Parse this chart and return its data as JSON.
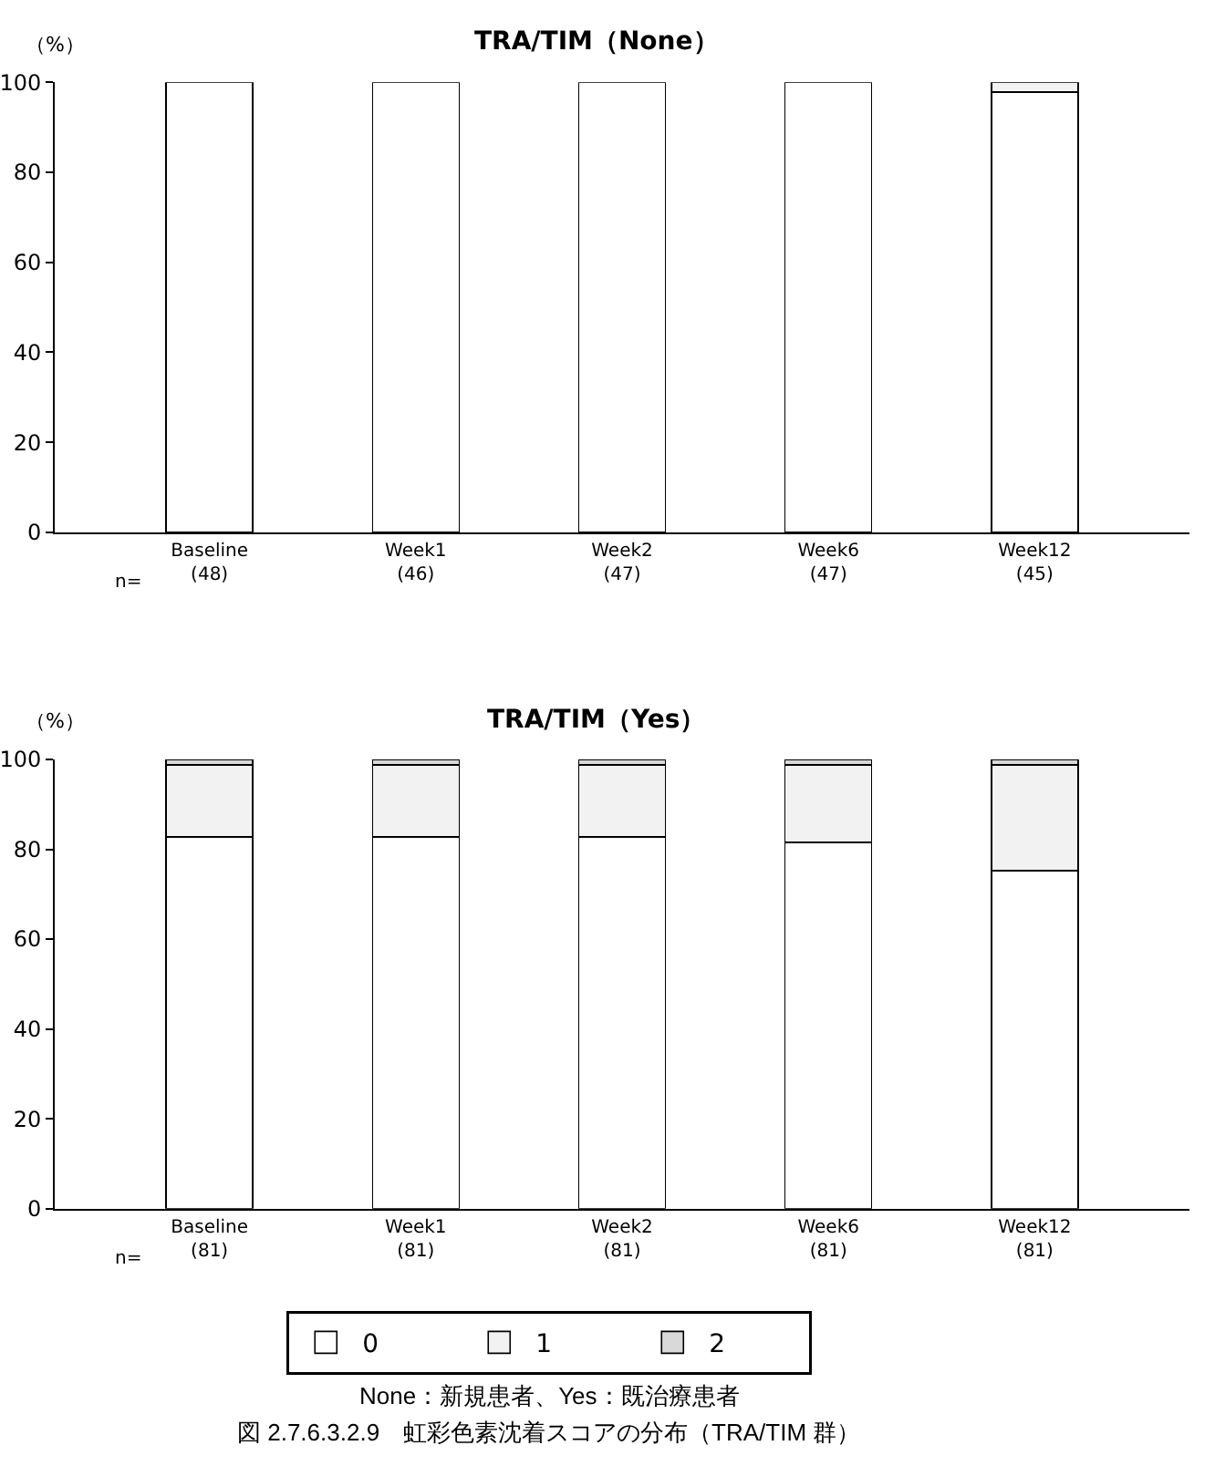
{
  "chart_data": [
    {
      "type": "bar",
      "stacked": true,
      "title": "TRA/TIM（None）",
      "ylabel": "（%）",
      "categories": [
        "Baseline\n(48)",
        "Week1\n(46)",
        "Week2\n(47)",
        "Week6\n(47)",
        "Week12\n(45)"
      ],
      "series": [
        {
          "color": "#ffffff",
          "values": [
            100,
            100,
            100,
            100,
            97.8
          ]
        },
        {
          "color": "#f2f2f2",
          "values": [
            0,
            0,
            0,
            0,
            2.2
          ]
        },
        {
          "color": "#d9d9d9",
          "values": [
            0,
            0,
            0,
            0,
            0
          ]
        }
      ],
      "ylim": [
        0,
        100
      ],
      "yticks": [
        0,
        20,
        40,
        60,
        80,
        100
      ],
      "annotations": [
        "n="
      ]
    },
    {
      "type": "bar",
      "stacked": true,
      "title": "TRA/TIM（Yes）",
      "ylabel": "（%）",
      "categories": [
        "Baseline\n(81)",
        "Week1\n(81)",
        "Week2\n(81)",
        "Week6\n(81)",
        "Week12\n(81)"
      ],
      "series": [
        {
          "name": "0",
          "color": "#ffffff",
          "values": [
            82.7,
            82.7,
            82.7,
            81.5,
            75.3
          ]
        },
        {
          "name": "1",
          "color": "#f2f2f2",
          "values": [
            16.1,
            16.1,
            16.1,
            17.3,
            23.5
          ]
        },
        {
          "name": "2",
          "color": "#d9d9d9",
          "values": [
            1.2,
            1.2,
            1.2,
            1.2,
            1.2
          ]
        }
      ],
      "ylim": [
        0,
        100
      ],
      "yticks": [
        0,
        20,
        40,
        60,
        80,
        100
      ],
      "legend": "bottom",
      "annotations": [
        "n=",
        "None：新規患者、Yes：既治療患者",
        "図 2.7.6.3.2.9　虹彩色素沈着スコアの分布（TRA/TIM 群）"
      ]
    }
  ]
}
